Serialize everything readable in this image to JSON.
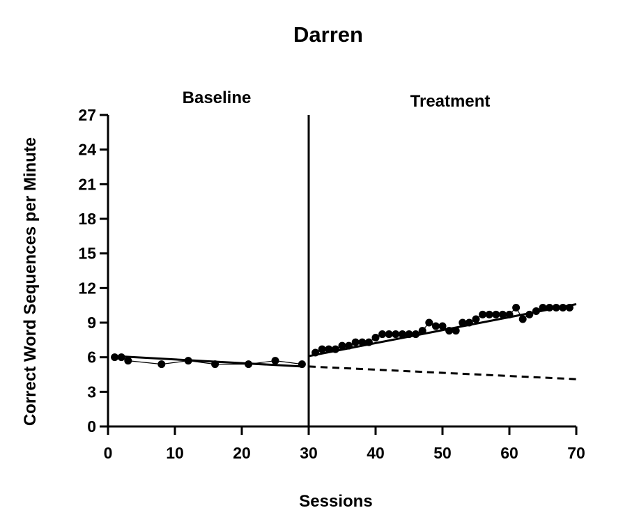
{
  "chart_data": {
    "type": "line",
    "title": "Darren",
    "xlabel": "Sessions",
    "ylabel": "Correct Word Sequences per Minute",
    "xlim": [
      0,
      70
    ],
    "ylim": [
      0,
      27
    ],
    "xticks": [
      0,
      10,
      20,
      30,
      40,
      50,
      60,
      70
    ],
    "yticks": [
      0,
      3,
      6,
      9,
      12,
      15,
      18,
      21,
      24,
      27
    ],
    "grid": false,
    "phase_change_x": 30,
    "phases": [
      {
        "label": "Baseline"
      },
      {
        "label": "Treatment"
      }
    ],
    "series": [
      {
        "phase": "Baseline",
        "x": [
          1,
          2,
          3,
          8,
          12,
          16,
          21,
          25,
          29
        ],
        "y": [
          6.0,
          6.0,
          5.7,
          5.4,
          5.7,
          5.4,
          5.4,
          5.7,
          5.4
        ]
      },
      {
        "phase": "Treatment",
        "x": [
          31,
          32,
          33,
          34,
          35,
          36,
          37,
          38,
          39,
          40,
          41,
          42,
          43,
          44,
          45,
          46,
          47,
          48,
          49,
          50,
          51,
          52,
          53,
          54,
          55,
          56,
          57,
          58,
          59,
          60,
          61,
          62,
          63,
          64,
          65,
          66,
          67,
          68,
          69
        ],
        "y": [
          6.4,
          6.7,
          6.7,
          6.7,
          7.0,
          7.0,
          7.3,
          7.3,
          7.3,
          7.7,
          8.0,
          8.0,
          8.0,
          8.0,
          8.0,
          8.0,
          8.3,
          9.0,
          8.7,
          8.7,
          8.3,
          8.3,
          9.0,
          9.0,
          9.3,
          9.7,
          9.7,
          9.7,
          9.7,
          9.7,
          10.3,
          9.3,
          9.7,
          10.0,
          10.3,
          10.3,
          10.3,
          10.3,
          10.3
        ]
      }
    ],
    "trend_lines": [
      {
        "phase": "Baseline",
        "x": [
          1,
          29
        ],
        "y": [
          6.1,
          5.2
        ],
        "style": "solid"
      },
      {
        "phase": "Treatment",
        "x": [
          30,
          70
        ],
        "y": [
          6.1,
          10.6
        ],
        "style": "solid"
      },
      {
        "phase": "Baseline extension",
        "x": [
          30,
          70
        ],
        "y": [
          5.2,
          4.1
        ],
        "style": "dashed"
      }
    ]
  }
}
